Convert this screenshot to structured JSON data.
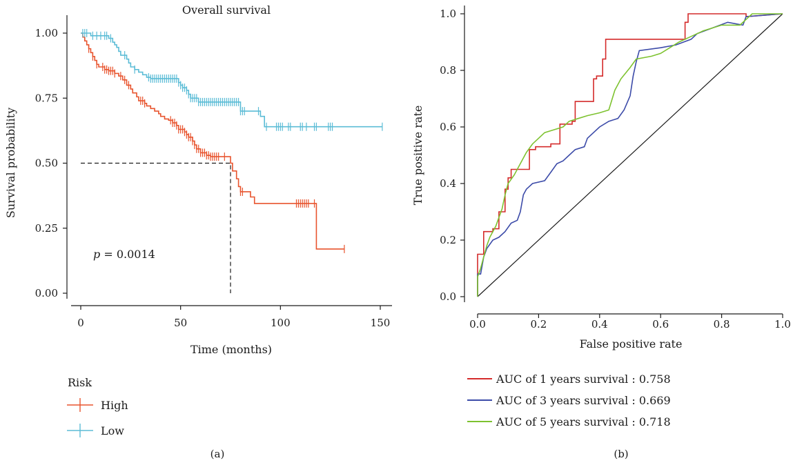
{
  "figure": {
    "panel_a_label": "(a)",
    "panel_b_label": "(b)"
  },
  "chart_data": [
    {
      "type": "line",
      "subtype": "kaplan-meier",
      "title": "Overall survival",
      "xlabel": "Time (months)",
      "ylabel": "Survival probability",
      "xlim": [
        0,
        150
      ],
      "ylim": [
        0,
        1
      ],
      "xticks": [
        0,
        50,
        100,
        150
      ],
      "xtick_labels": [
        "0",
        "50",
        "100",
        "150"
      ],
      "yticks": [
        0,
        0.25,
        0.5,
        0.75,
        1.0
      ],
      "ytick_labels": [
        "0.00",
        "0.25",
        "0.50",
        "0.75",
        "1.00"
      ],
      "grid": false,
      "annotation": {
        "p_symbol": "p",
        "p_rest": " = 0.0014"
      },
      "legend_title": "Risk",
      "legend_position": "bottom-left",
      "median_survival": {
        "x": 75,
        "y": 0.5
      },
      "series": [
        {
          "name": "High",
          "color": "#e8532d",
          "steps": [
            [
              0,
              1.0
            ],
            [
              1,
              0.985
            ],
            [
              2,
              0.97
            ],
            [
              3,
              0.955
            ],
            [
              4,
              0.94
            ],
            [
              5,
              0.925
            ],
            [
              6,
              0.91
            ],
            [
              7,
              0.895
            ],
            [
              8,
              0.88
            ],
            [
              9,
              0.87
            ],
            [
              12,
              0.86
            ],
            [
              14,
              0.855
            ],
            [
              17,
              0.845
            ],
            [
              19,
              0.835
            ],
            [
              21,
              0.82
            ],
            [
              23,
              0.8
            ],
            [
              25,
              0.785
            ],
            [
              26,
              0.77
            ],
            [
              28,
              0.755
            ],
            [
              29,
              0.74
            ],
            [
              32,
              0.73
            ],
            [
              33,
              0.72
            ],
            [
              35,
              0.71
            ],
            [
              37,
              0.7
            ],
            [
              39,
              0.69
            ],
            [
              40,
              0.68
            ],
            [
              42,
              0.67
            ],
            [
              44,
              0.665
            ],
            [
              46,
              0.655
            ],
            [
              48,
              0.645
            ],
            [
              49,
              0.63
            ],
            [
              52,
              0.62
            ],
            [
              53,
              0.61
            ],
            [
              54,
              0.6
            ],
            [
              56,
              0.585
            ],
            [
              57,
              0.57
            ],
            [
              58,
              0.555
            ],
            [
              60,
              0.54
            ],
            [
              63,
              0.53
            ],
            [
              65,
              0.525
            ],
            [
              75,
              0.5
            ],
            [
              76,
              0.47
            ],
            [
              78,
              0.44
            ],
            [
              79,
              0.41
            ],
            [
              80,
              0.39
            ],
            [
              85,
              0.37
            ],
            [
              87,
              0.345
            ],
            [
              118,
              0.17
            ],
            [
              132,
              0.17
            ]
          ],
          "censor_x": [
            4,
            6,
            8,
            11,
            12,
            13,
            14,
            15,
            16,
            17,
            20,
            22,
            24,
            30,
            31,
            32,
            45,
            46,
            47,
            48,
            49,
            50,
            51,
            52,
            53,
            54,
            55,
            56,
            57,
            58,
            59,
            60,
            61,
            62,
            63,
            64,
            65,
            66,
            67,
            68,
            69,
            72,
            80,
            81,
            108,
            109,
            110,
            111,
            112,
            113,
            114,
            117,
            132
          ]
        },
        {
          "name": "Low",
          "color": "#5bbcd6",
          "steps": [
            [
              0,
              1.0
            ],
            [
              5,
              0.99
            ],
            [
              14,
              0.98
            ],
            [
              16,
              0.965
            ],
            [
              17,
              0.955
            ],
            [
              18,
              0.945
            ],
            [
              19,
              0.93
            ],
            [
              20,
              0.915
            ],
            [
              23,
              0.9
            ],
            [
              24,
              0.885
            ],
            [
              25,
              0.87
            ],
            [
              27,
              0.86
            ],
            [
              29,
              0.85
            ],
            [
              31,
              0.84
            ],
            [
              33,
              0.83
            ],
            [
              35,
              0.825
            ],
            [
              49,
              0.81
            ],
            [
              50,
              0.8
            ],
            [
              51,
              0.79
            ],
            [
              53,
              0.78
            ],
            [
              54,
              0.765
            ],
            [
              55,
              0.75
            ],
            [
              59,
              0.735
            ],
            [
              80,
              0.7
            ],
            [
              90,
              0.68
            ],
            [
              92,
              0.64
            ],
            [
              151,
              0.64
            ]
          ],
          "censor_x": [
            1,
            2,
            3,
            6,
            8,
            10,
            12,
            13,
            15,
            22,
            27,
            34,
            35,
            36,
            37,
            38,
            39,
            40,
            41,
            42,
            43,
            44,
            45,
            46,
            47,
            48,
            49,
            50,
            51,
            52,
            53,
            54,
            55,
            56,
            57,
            58,
            59,
            60,
            61,
            62,
            63,
            64,
            65,
            66,
            67,
            68,
            69,
            70,
            71,
            72,
            73,
            74,
            75,
            76,
            77,
            78,
            79,
            80,
            81,
            82,
            89,
            93,
            98,
            99,
            100,
            101,
            104,
            105,
            110,
            111,
            113,
            117,
            118,
            124,
            125,
            126,
            151
          ]
        }
      ]
    },
    {
      "type": "line",
      "subtype": "roc",
      "xlabel": "False positive rate",
      "ylabel": "True positive rate",
      "xlim": [
        0,
        1
      ],
      "ylim": [
        0,
        1
      ],
      "xticks": [
        0,
        0.2,
        0.4,
        0.6,
        0.8,
        1.0
      ],
      "xtick_labels": [
        "0.0",
        "0.2",
        "0.4",
        "0.6",
        "0.8",
        "1.0"
      ],
      "yticks": [
        0,
        0.2,
        0.4,
        0.6,
        0.8,
        1.0
      ],
      "ytick_labels": [
        "0.0",
        "0.2",
        "0.4",
        "0.6",
        "0.8",
        "1.0"
      ],
      "grid": false,
      "diagonal": true,
      "legend_position": "bottom",
      "series": [
        {
          "name": "AUC of 1 years survival : 0.758",
          "color": "#d42a2a",
          "points": [
            [
              0,
              0
            ],
            [
              0,
              0.15
            ],
            [
              0.02,
              0.15
            ],
            [
              0.02,
              0.23
            ],
            [
              0.05,
              0.23
            ],
            [
              0.05,
              0.24
            ],
            [
              0.07,
              0.24
            ],
            [
              0.07,
              0.3
            ],
            [
              0.09,
              0.3
            ],
            [
              0.09,
              0.38
            ],
            [
              0.1,
              0.38
            ],
            [
              0.1,
              0.42
            ],
            [
              0.11,
              0.42
            ],
            [
              0.11,
              0.45
            ],
            [
              0.17,
              0.45
            ],
            [
              0.17,
              0.52
            ],
            [
              0.19,
              0.52
            ],
            [
              0.19,
              0.53
            ],
            [
              0.24,
              0.53
            ],
            [
              0.24,
              0.54
            ],
            [
              0.27,
              0.54
            ],
            [
              0.27,
              0.61
            ],
            [
              0.31,
              0.61
            ],
            [
              0.31,
              0.62
            ],
            [
              0.32,
              0.62
            ],
            [
              0.32,
              0.69
            ],
            [
              0.38,
              0.69
            ],
            [
              0.38,
              0.77
            ],
            [
              0.39,
              0.77
            ],
            [
              0.39,
              0.78
            ],
            [
              0.41,
              0.78
            ],
            [
              0.41,
              0.84
            ],
            [
              0.42,
              0.84
            ],
            [
              0.42,
              0.91
            ],
            [
              0.68,
              0.91
            ],
            [
              0.68,
              0.97
            ],
            [
              0.69,
              0.97
            ],
            [
              0.69,
              1.0
            ],
            [
              0.88,
              1.0
            ],
            [
              0.88,
              0.99
            ],
            [
              1.0,
              1.0
            ]
          ]
        },
        {
          "name": "AUC of 3 years survival : 0.669",
          "color": "#3b4aa8",
          "points": [
            [
              0,
              0
            ],
            [
              0,
              0.08
            ],
            [
              0.01,
              0.08
            ],
            [
              0.02,
              0.14
            ],
            [
              0.03,
              0.17
            ],
            [
              0.05,
              0.2
            ],
            [
              0.07,
              0.21
            ],
            [
              0.09,
              0.23
            ],
            [
              0.11,
              0.26
            ],
            [
              0.13,
              0.27
            ],
            [
              0.14,
              0.3
            ],
            [
              0.15,
              0.36
            ],
            [
              0.16,
              0.38
            ],
            [
              0.18,
              0.4
            ],
            [
              0.22,
              0.41
            ],
            [
              0.24,
              0.44
            ],
            [
              0.26,
              0.47
            ],
            [
              0.28,
              0.48
            ],
            [
              0.3,
              0.5
            ],
            [
              0.32,
              0.52
            ],
            [
              0.35,
              0.53
            ],
            [
              0.36,
              0.56
            ],
            [
              0.38,
              0.58
            ],
            [
              0.4,
              0.6
            ],
            [
              0.43,
              0.62
            ],
            [
              0.46,
              0.63
            ],
            [
              0.48,
              0.66
            ],
            [
              0.5,
              0.71
            ],
            [
              0.51,
              0.78
            ],
            [
              0.52,
              0.83
            ],
            [
              0.53,
              0.87
            ],
            [
              0.6,
              0.88
            ],
            [
              0.65,
              0.89
            ],
            [
              0.7,
              0.91
            ],
            [
              0.72,
              0.93
            ],
            [
              0.77,
              0.95
            ],
            [
              0.82,
              0.97
            ],
            [
              0.87,
              0.96
            ],
            [
              0.88,
              0.99
            ],
            [
              1.0,
              1.0
            ]
          ]
        },
        {
          "name": "AUC of 5 years survival : 0.718",
          "color": "#7dc22f",
          "points": [
            [
              0,
              0
            ],
            [
              0,
              0.07
            ],
            [
              0.01,
              0.1
            ],
            [
              0.02,
              0.14
            ],
            [
              0.03,
              0.18
            ],
            [
              0.04,
              0.21
            ],
            [
              0.05,
              0.23
            ],
            [
              0.06,
              0.25
            ],
            [
              0.07,
              0.28
            ],
            [
              0.08,
              0.31
            ],
            [
              0.09,
              0.36
            ],
            [
              0.1,
              0.4
            ],
            [
              0.12,
              0.43
            ],
            [
              0.14,
              0.47
            ],
            [
              0.16,
              0.51
            ],
            [
              0.18,
              0.54
            ],
            [
              0.2,
              0.56
            ],
            [
              0.22,
              0.58
            ],
            [
              0.25,
              0.59
            ],
            [
              0.28,
              0.6
            ],
            [
              0.3,
              0.62
            ],
            [
              0.33,
              0.63
            ],
            [
              0.36,
              0.64
            ],
            [
              0.4,
              0.65
            ],
            [
              0.43,
              0.66
            ],
            [
              0.45,
              0.73
            ],
            [
              0.46,
              0.75
            ],
            [
              0.47,
              0.77
            ],
            [
              0.5,
              0.81
            ],
            [
              0.52,
              0.84
            ],
            [
              0.57,
              0.85
            ],
            [
              0.6,
              0.86
            ],
            [
              0.63,
              0.88
            ],
            [
              0.66,
              0.9
            ],
            [
              0.7,
              0.92
            ],
            [
              0.74,
              0.94
            ],
            [
              0.8,
              0.96
            ],
            [
              0.86,
              0.96
            ],
            [
              0.88,
              0.98
            ],
            [
              0.9,
              1.0
            ],
            [
              1.0,
              1.0
            ]
          ]
        }
      ]
    }
  ]
}
